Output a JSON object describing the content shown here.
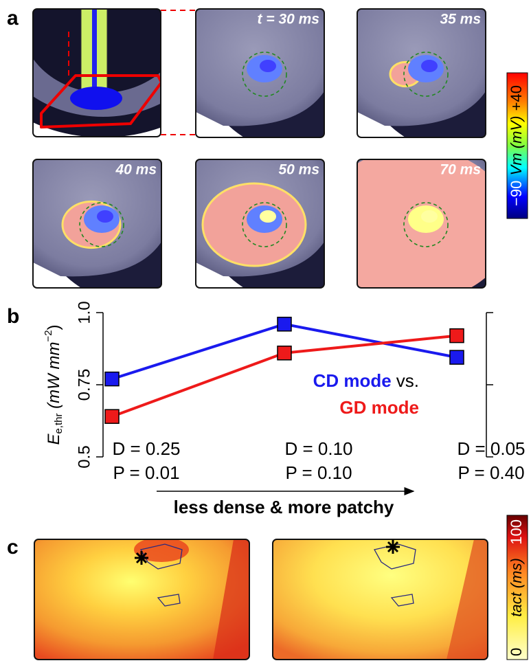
{
  "panel_labels": [
    "a",
    "b",
    "c"
  ],
  "panel_a": {
    "time_labels": [
      "t = 30 ms",
      "35 ms",
      "40 ms",
      "50 ms",
      "70 ms"
    ],
    "colorbar": {
      "min_label": "−90",
      "title": "Vm (mV)",
      "max_label": "+40"
    }
  },
  "chart_data": {
    "type": "line",
    "categories": [
      "D = 0.25",
      "D = 0.10",
      "D = 0.05"
    ],
    "category_sublabels": [
      "P = 0.01",
      "P = 0.10",
      "P = 0.40"
    ],
    "ylabel_parts": [
      "E",
      "e,thr",
      " (mW mm",
      "−2",
      ")"
    ],
    "ylim": [
      0.5,
      1.0
    ],
    "yticks": [
      0.5,
      0.75,
      {
        "value": 1.0,
        "label": "1.0"
      }
    ],
    "series": [
      {
        "name": "CD mode",
        "color": "#1a1aee",
        "values": [
          0.77,
          0.96,
          0.845
        ]
      },
      {
        "name": "GD mode",
        "color": "#ee1a1a",
        "values": [
          0.64,
          0.86,
          0.92
        ]
      }
    ],
    "legend_joiner": "vs.",
    "arrow_caption": "less dense & more patchy"
  },
  "panel_c": {
    "colorbar": {
      "min_label": "0",
      "title": "tact (ms)",
      "max_label": "100"
    }
  }
}
